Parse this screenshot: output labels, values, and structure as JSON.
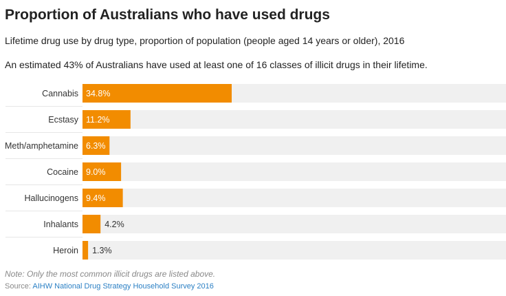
{
  "chart_data": {
    "type": "bar",
    "orientation": "horizontal",
    "title": "Proportion of Australians who have used drugs",
    "subtitle": "Lifetime drug use by drug type, proportion of population (people aged 14 years or older), 2016",
    "description": "An estimated 43% of Australians have used at least one of 16 classes of illicit drugs in their lifetime.",
    "categories": [
      "Cannabis",
      "Ecstasy",
      "Meth/amphetamine",
      "Cocaine",
      "Hallucinogens",
      "Inhalants",
      "Heroin"
    ],
    "values": [
      34.8,
      11.2,
      6.3,
      9.0,
      9.4,
      4.2,
      1.3
    ],
    "labels": [
      "34.8%",
      "11.2%",
      "6.3%",
      "9.0%",
      "9.4%",
      "4.2%",
      "1.3%"
    ],
    "xlim": [
      0,
      100
    ],
    "grid": false,
    "colors": {
      "bar": "#f28c00",
      "track": "#f0f0f0",
      "separator": "#e6e6e6"
    }
  },
  "footer": {
    "note": "Note: Only the most common illicit drugs are listed above.",
    "source_label": "Source: ",
    "source_link": "AIHW National Drug Strategy Household Survey 2016"
  }
}
